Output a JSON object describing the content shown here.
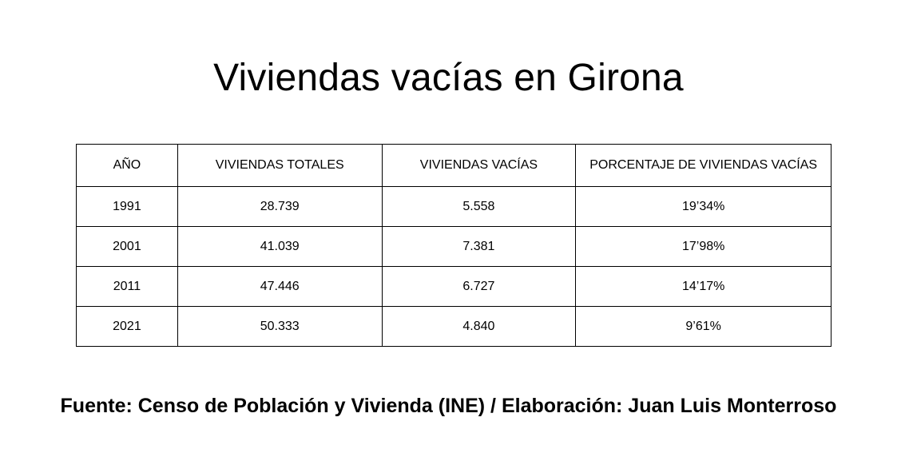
{
  "title": "Viviendas vacías en Girona",
  "table": {
    "headers": [
      "AÑO",
      "VIVIENDAS TOTALES",
      "VIVIENDAS VACÍAS",
      "PORCENTAJE DE VIVIENDAS VACÍAS"
    ],
    "rows": [
      [
        "1991",
        "28.739",
        "5.558",
        "19’34%"
      ],
      [
        "2001",
        "41.039",
        "7.381",
        "17’98%"
      ],
      [
        "2011",
        "47.446",
        "6.727",
        "14’17%"
      ],
      [
        "2021",
        "50.333",
        "4.840",
        "9’61%"
      ]
    ]
  },
  "source": "Fuente: Censo de Población y Vivienda (INE) / Elaboración: Juan Luis Monterroso"
}
